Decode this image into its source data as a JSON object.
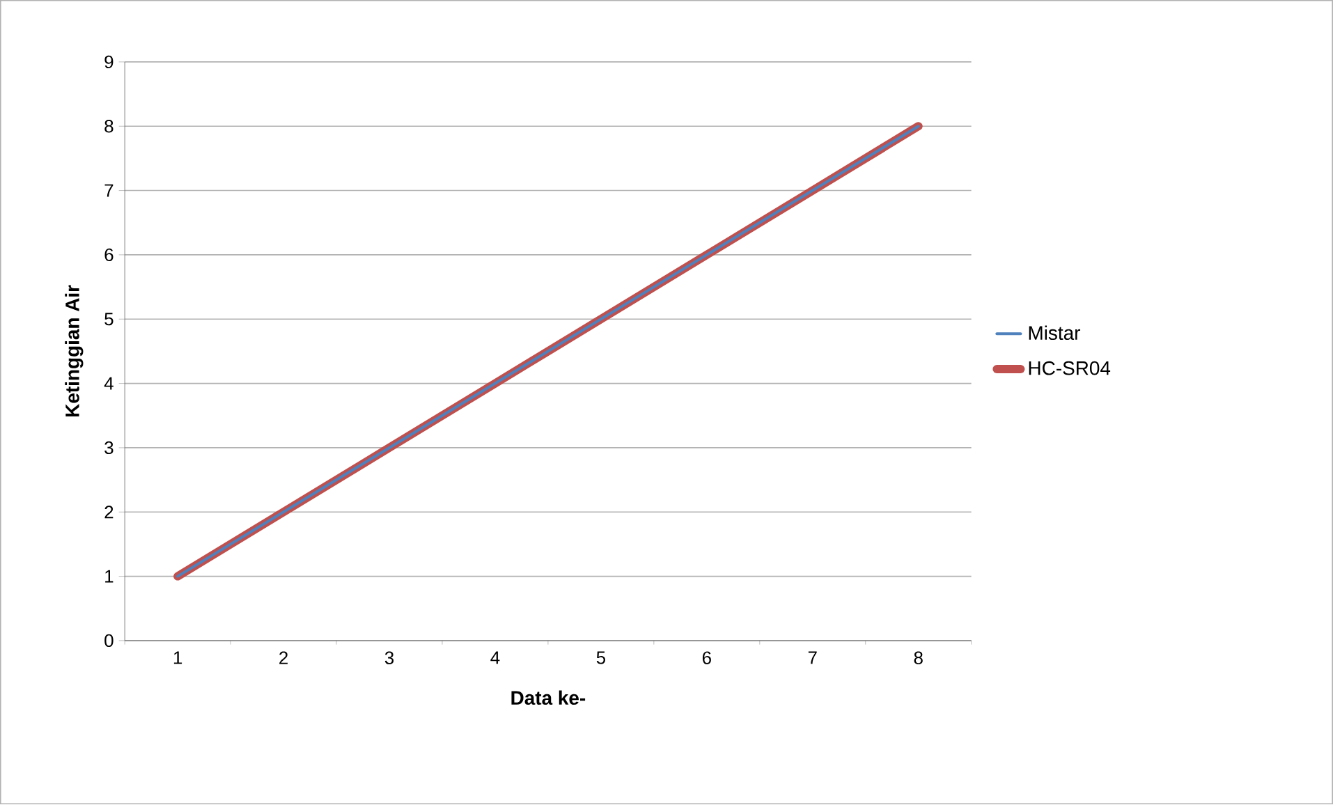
{
  "chart_data": {
    "type": "line",
    "xlabel": "Data ke-",
    "ylabel": "Ketinggian Air",
    "categories": [
      "1",
      "2",
      "3",
      "4",
      "5",
      "6",
      "7",
      "8"
    ],
    "series": [
      {
        "name": "Mistar",
        "color": "#4f81bd",
        "values": [
          1,
          2,
          3,
          4,
          5,
          6,
          7,
          8
        ]
      },
      {
        "name": "HC-SR04",
        "color": "#c0504d",
        "values": [
          1,
          2,
          3,
          4,
          5,
          6,
          7,
          8
        ]
      }
    ],
    "ylim": [
      0,
      9
    ],
    "yticks": [
      0,
      1,
      2,
      3,
      4,
      5,
      6,
      7,
      8,
      9
    ],
    "grid": "y",
    "legend": "right",
    "marker": "none",
    "line_style": "solid"
  }
}
